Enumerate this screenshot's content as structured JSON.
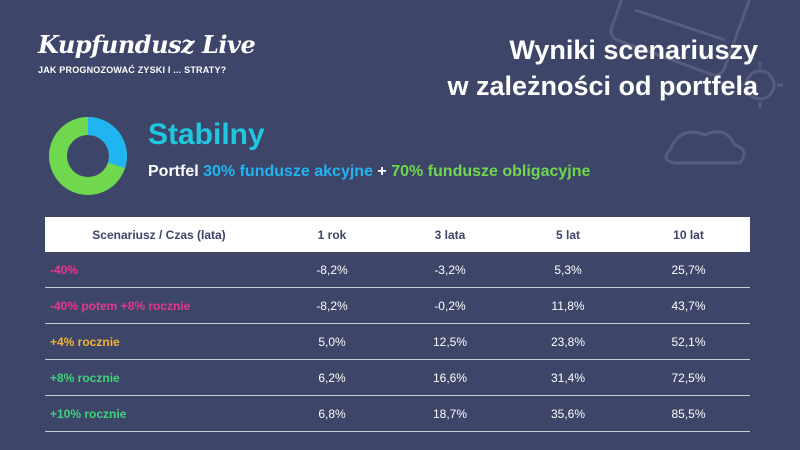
{
  "brand": {
    "logo": "Kupfundusz Live",
    "tagline": "JAK PROGNOZOWAĆ ZYSKI I ... STRATY?"
  },
  "headline": {
    "line1": "Wyniki scenariuszy",
    "line2": "w zależności od portfela"
  },
  "profile": {
    "name": "Stabilny",
    "portfolio_prefix": "Portfel",
    "equity_part": "30% fundusze akcyjne",
    "separator": "+",
    "bond_part": "70% fundusze obligacyjne",
    "equity_share": 30,
    "bond_share": 70,
    "equity_color": "#20b4f0",
    "bond_color": "#6fd84e"
  },
  "table": {
    "headers": [
      "Scenariusz / Czas (lata)",
      "1 rok",
      "3 lata",
      "5 lat",
      "10 lat"
    ],
    "rows": [
      {
        "label": "-40%",
        "color": "#e5388f",
        "values": [
          "-8,2%",
          "-3,2%",
          "5,3%",
          "25,7%"
        ]
      },
      {
        "label": "-40% potem +8% rocznie",
        "color": "#e5388f",
        "values": [
          "-8,2%",
          "-0,2%",
          "11,8%",
          "43,7%"
        ]
      },
      {
        "label": "+4% rocznie",
        "color": "#f2b233",
        "values": [
          "5,0%",
          "12,5%",
          "23,8%",
          "52,1%"
        ]
      },
      {
        "label": "+8% rocznie",
        "color": "#3fd37a",
        "values": [
          "6,2%",
          "16,6%",
          "31,4%",
          "72,5%"
        ]
      },
      {
        "label": "+10% rocznie",
        "color": "#3fd37a",
        "values": [
          "6,8%",
          "18,7%",
          "35,6%",
          "85,5%"
        ]
      }
    ]
  }
}
